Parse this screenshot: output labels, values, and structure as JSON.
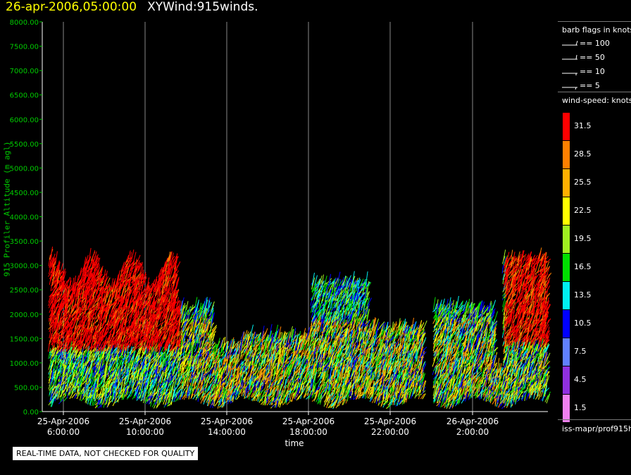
{
  "header": {
    "date": "26-apr-2006,05:00:00",
    "title": "XYWind:915winds."
  },
  "chart_data": {
    "type": "scatter",
    "ylabel": "915 Profiler Altitude (m agl)",
    "xlabel": "time",
    "ylim": [
      0,
      8000
    ],
    "yticks": [
      "0.00",
      "500.00",
      "1000.00",
      "1500.00",
      "2000.00",
      "2500.00",
      "3000.00",
      "3500.00",
      "4000.00",
      "4500.00",
      "5000.00",
      "5500.00",
      "6000.00",
      "6500.00",
      "7000.00",
      "7500.00",
      "8000.00"
    ],
    "xticks": [
      {
        "date": "25-Apr-2006",
        "time": "6:00:00"
      },
      {
        "date": "25-Apr-2006",
        "time": "10:00:00"
      },
      {
        "date": "25-Apr-2006",
        "time": "14:00:00"
      },
      {
        "date": "25-Apr-2006",
        "time": "18:00:00"
      },
      {
        "date": "25-Apr-2006",
        "time": "22:00:00"
      },
      {
        "date": "26-Apr-2006",
        "time": "2:00:00"
      }
    ],
    "grid": "vertical lines at each x tick",
    "series_description": "wind barbs colored by wind speed (knots)"
  },
  "legend": {
    "barb_title": "barb flags in knots",
    "barbs": [
      "== 100",
      "== 50",
      "== 10",
      "== 5"
    ],
    "speed_title": "wind-speed: knots",
    "scale": [
      {
        "label": "31.5",
        "color": "#ff0000"
      },
      {
        "label": "28.5",
        "color": "#ff8000"
      },
      {
        "label": "25.5",
        "color": "#ffb000"
      },
      {
        "label": "22.5",
        "color": "#ffff00"
      },
      {
        "label": "19.5",
        "color": "#a0f020"
      },
      {
        "label": "16.5",
        "color": "#00e000"
      },
      {
        "label": "13.5",
        "color": "#00f0f0"
      },
      {
        "label": "10.5",
        "color": "#0000ff"
      },
      {
        "label": "7.5",
        "color": "#6080ff"
      },
      {
        "label": "4.5",
        "color": "#9030e0"
      },
      {
        "label": "1.5",
        "color": "#f080f0"
      }
    ],
    "source": "iss-mapr/prof915h"
  },
  "notice": "REAL-TIME DATA, NOT CHECKED FOR QUALITY"
}
